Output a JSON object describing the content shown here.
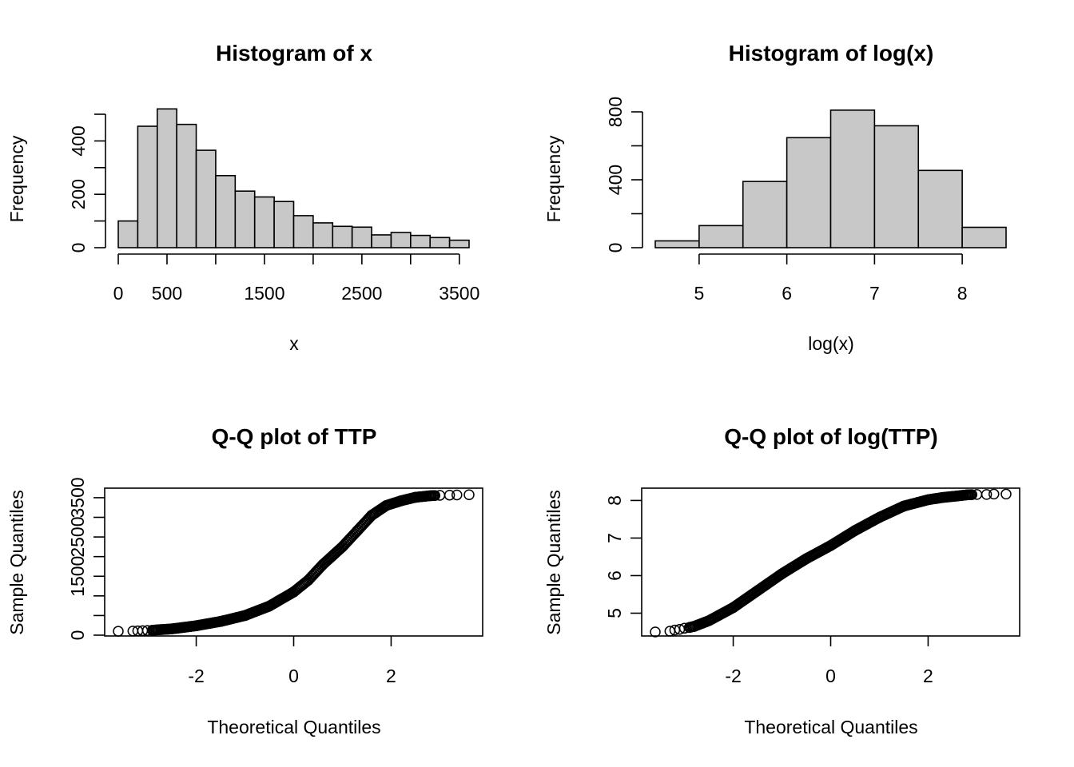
{
  "chart_data": [
    {
      "type": "bar",
      "title": "Histogram of x",
      "xlabel": "x",
      "ylabel": "Frequency",
      "bin_width": 200,
      "bin_start": 0,
      "values": [
        100,
        455,
        520,
        462,
        365,
        270,
        212,
        190,
        173,
        120,
        93,
        80,
        77,
        48,
        57,
        46,
        38,
        28
      ],
      "xlim": [
        0,
        3600
      ],
      "ylim": [
        0,
        500
      ],
      "xticks": [
        0,
        500,
        1000,
        1500,
        2000,
        2500,
        3000,
        3500
      ],
      "xtick_labels": [
        "0",
        "500",
        "",
        "1500",
        "",
        "2500",
        "",
        "3500"
      ],
      "yticks": [
        0,
        100,
        200,
        300,
        400,
        500
      ],
      "ytick_labels": [
        "0",
        "",
        "200",
        "",
        "400",
        ""
      ],
      "grid": false
    },
    {
      "type": "bar",
      "title": "Histogram of log(x)",
      "xlabel": "log(x)",
      "ylabel": "Frequency",
      "bin_width": 0.5,
      "bin_start": 4.5,
      "values": [
        40,
        130,
        390,
        648,
        810,
        718,
        455,
        120
      ],
      "xlim": [
        4.5,
        8.5
      ],
      "ylim": [
        0,
        800
      ],
      "xticks": [
        5,
        6,
        7,
        8
      ],
      "xtick_labels": [
        "5",
        "6",
        "7",
        "8"
      ],
      "yticks": [
        0,
        200,
        400,
        600,
        800
      ],
      "ytick_labels": [
        "0",
        "",
        "400",
        "",
        "800"
      ],
      "grid": false
    },
    {
      "type": "scatter",
      "title": "Q-Q plot of TTP",
      "xlabel": "Theoretical Quantiles",
      "ylabel": "Sample Quantiles",
      "x": [
        -3.6,
        -3.3,
        -3.2,
        -3.1,
        -3.0,
        -2.9,
        -2.85,
        -2.8,
        -2.5,
        -2.0,
        -1.5,
        -1.0,
        -0.5,
        0.0,
        0.3,
        0.6,
        1.0,
        1.3,
        1.6,
        1.9,
        2.2,
        2.5,
        2.8,
        3.0,
        3.2,
        3.35,
        3.6
      ],
      "y": [
        100,
        105,
        110,
        115,
        120,
        125,
        130,
        135,
        160,
        240,
        350,
        500,
        740,
        1100,
        1400,
        1800,
        2250,
        2650,
        3050,
        3300,
        3420,
        3510,
        3550,
        3560,
        3565,
        3570,
        3575
      ],
      "xlim": [
        -3.6,
        3.6
      ],
      "ylim": [
        0,
        3600
      ],
      "xticks": [
        -2,
        0,
        2
      ],
      "xtick_labels": [
        "-2",
        "0",
        "2"
      ],
      "yticks": [
        0,
        500,
        1000,
        1500,
        2000,
        2500,
        3000,
        3500
      ],
      "ytick_labels": [
        "0",
        "",
        "",
        "1500",
        "",
        "2500",
        "",
        "3500"
      ],
      "grid": false
    },
    {
      "type": "scatter",
      "title": "Q-Q plot of log(TTP)",
      "xlabel": "Theoretical Quantiles",
      "ylabel": "Sample Quantiles",
      "x": [
        -3.6,
        -3.3,
        -3.2,
        -3.1,
        -3.0,
        -2.9,
        -2.8,
        -2.5,
        -2.0,
        -1.5,
        -1.0,
        -0.5,
        0.0,
        0.5,
        1.0,
        1.5,
        2.0,
        2.3,
        2.6,
        2.8,
        3.0,
        3.2,
        3.35,
        3.6
      ],
      "y": [
        4.5,
        4.52,
        4.55,
        4.57,
        4.6,
        4.62,
        4.65,
        4.8,
        5.15,
        5.6,
        6.05,
        6.45,
        6.8,
        7.2,
        7.55,
        7.85,
        8.02,
        8.08,
        8.12,
        8.15,
        8.16,
        8.16,
        8.17,
        8.17
      ],
      "xlim": [
        -3.6,
        3.6
      ],
      "ylim": [
        4.5,
        8.2
      ],
      "xticks": [
        -2,
        0,
        2
      ],
      "xtick_labels": [
        "-2",
        "0",
        "2"
      ],
      "yticks": [
        5,
        6,
        7,
        8
      ],
      "ytick_labels": [
        "5",
        "6",
        "7",
        "8"
      ],
      "grid": false
    }
  ]
}
